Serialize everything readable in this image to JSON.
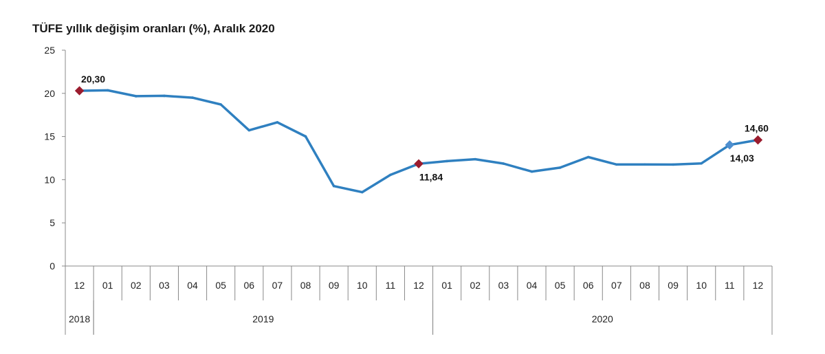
{
  "chart_data": {
    "type": "line",
    "title": "TÜFE yıllık değişim oranları (%), Aralık 2020",
    "ylim": [
      0,
      25
    ],
    "yticks": [
      0,
      5,
      10,
      15,
      20,
      25
    ],
    "categories": [
      "12",
      "01",
      "02",
      "03",
      "04",
      "05",
      "06",
      "07",
      "08",
      "09",
      "10",
      "11",
      "12",
      "01",
      "02",
      "03",
      "04",
      "05",
      "06",
      "07",
      "08",
      "09",
      "10",
      "11",
      "12"
    ],
    "years": [
      {
        "label": "2018",
        "start": 0,
        "end": 0
      },
      {
        "label": "2019",
        "start": 1,
        "end": 12
      },
      {
        "label": "2020",
        "start": 13,
        "end": 24
      }
    ],
    "series": [
      {
        "name": "TÜFE",
        "color": "#2f80c0",
        "values": [
          20.3,
          20.35,
          19.67,
          19.71,
          19.5,
          18.71,
          15.72,
          16.65,
          15.01,
          9.26,
          8.55,
          10.56,
          11.84,
          12.15,
          12.37,
          11.86,
          10.94,
          11.39,
          12.62,
          11.76,
          11.77,
          11.75,
          11.89,
          14.03,
          14.6
        ]
      }
    ],
    "markers": [
      {
        "index": 0,
        "label": "20,30",
        "color": "#9b1c2e",
        "pos": "above"
      },
      {
        "index": 12,
        "label": "11,84",
        "color": "#9b1c2e",
        "pos": "below"
      },
      {
        "index": 23,
        "label": "14,03",
        "color": "#4f8fcf",
        "pos": "below"
      },
      {
        "index": 24,
        "label": "14,60",
        "color": "#9b1c2e",
        "pos": "above"
      }
    ]
  }
}
